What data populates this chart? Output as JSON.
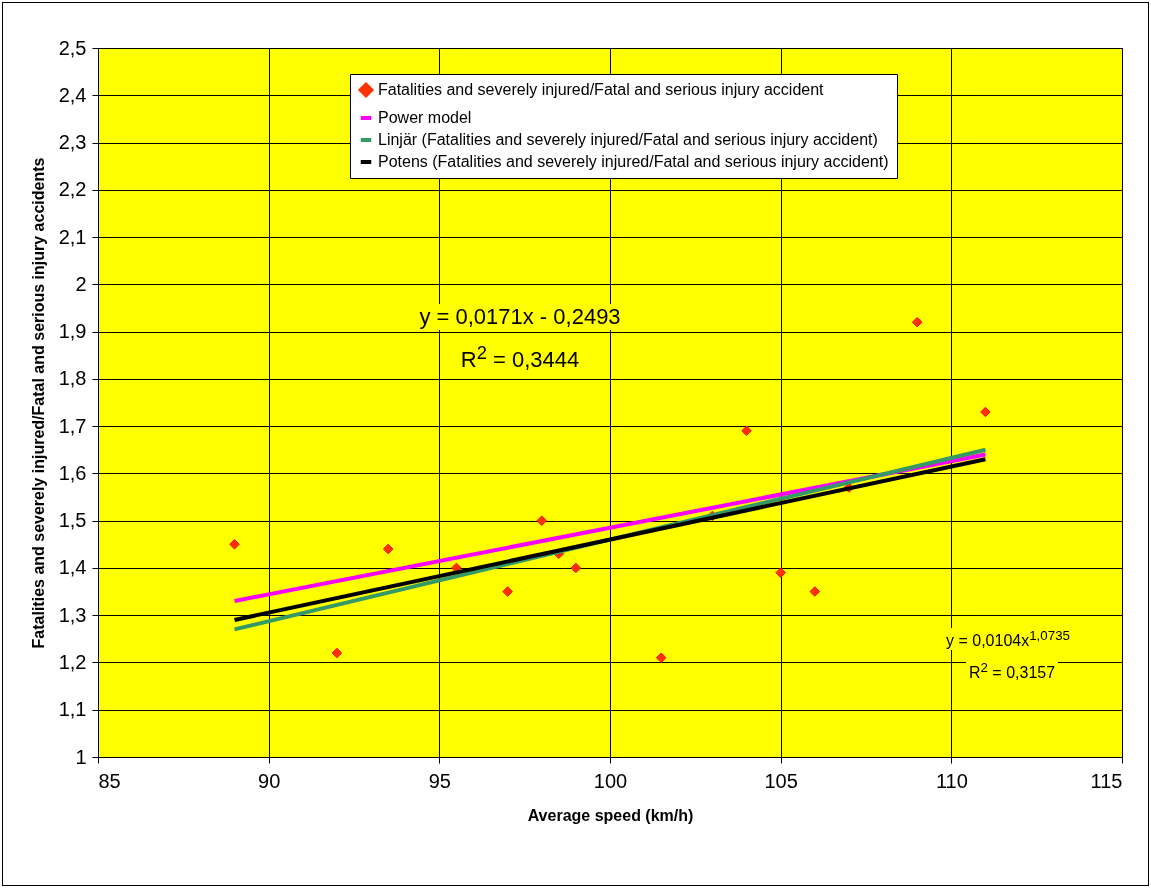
{
  "chart_data": {
    "type": "scatter",
    "xlabel": "Average speed (km/h)",
    "ylabel": "Fatalities and severely injured/Fatal and serious injury accidents",
    "xlim": [
      85,
      115
    ],
    "xticks": [
      85,
      90,
      95,
      100,
      105,
      110,
      115
    ],
    "ylim": [
      1,
      2.5
    ],
    "yticks": [
      1,
      {
        "value": 1.1,
        "label": "1,1"
      },
      {
        "value": 1.2,
        "label": "1,2"
      },
      {
        "value": 1.3,
        "label": "1,3"
      },
      {
        "value": 1.4,
        "label": "1,4"
      },
      {
        "value": 1.5,
        "label": "1,5"
      },
      {
        "value": 1.6,
        "label": "1,6"
      },
      {
        "value": 1.7,
        "label": "1,7"
      },
      {
        "value": 1.8,
        "label": "1,8"
      },
      {
        "value": 1.9,
        "label": "1,9"
      },
      2,
      {
        "value": 2.1,
        "label": "2,1"
      },
      {
        "value": 2.2,
        "label": "2,2"
      },
      {
        "value": 2.3,
        "label": "2,3"
      },
      {
        "value": 2.4,
        "label": "2,4"
      },
      {
        "value": 2.5,
        "label": "2,5"
      }
    ],
    "grid": true,
    "legend": "top",
    "series": [
      {
        "name": "Fatalities and severely injured/Fatal and serious injury accident",
        "marker": "diamond",
        "color": "#ff3300",
        "x": [
          89,
          92,
          93.5,
          95.5,
          97,
          98,
          98.5,
          99,
          101.5,
          103,
          104,
          105,
          106,
          107,
          109,
          111
        ],
        "values": [
          1.45,
          1.22,
          1.44,
          1.4,
          1.35,
          1.5,
          1.43,
          1.4,
          1.21,
          1.51,
          1.69,
          1.39,
          1.35,
          1.57,
          1.92,
          1.73
        ]
      },
      {
        "name": "Power model",
        "type": "line",
        "color": "#ff00ff",
        "line_style": "solid",
        "x": [
          89,
          111
        ],
        "values": [
          1.33,
          1.64
        ]
      },
      {
        "name": "Linjär (Fatalities and severely injured/Fatal and serious injury accident)",
        "type": "line",
        "color": "#339966",
        "line_style": "solid",
        "x": [
          89,
          111
        ],
        "values": [
          1.27,
          1.65
        ]
      },
      {
        "name": "Potens (Fatalities and severely injured/Fatal and serious injury accident)",
        "type": "line",
        "color": "#000000",
        "line_style": "solid",
        "x": [
          89,
          111
        ],
        "values": [
          1.29,
          1.63
        ]
      }
    ],
    "annotations": [
      "y = 0,0171x - 0,2493",
      "R$^{2}$ = 0,3444",
      "y = 0,0104x$^{1,0735}$",
      "R$^{2}$ = 0,3157"
    ]
  }
}
